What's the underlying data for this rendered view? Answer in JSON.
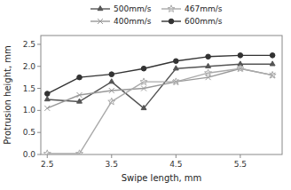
{
  "chart_data": {
    "type": "line",
    "x": [
      2.5,
      3.0,
      3.5,
      4.0,
      4.5,
      5.0,
      5.5,
      6.0
    ],
    "series": [
      {
        "name": "500mm/s",
        "color": "#555555",
        "marker": "triangle",
        "values": [
          1.25,
          1.2,
          1.65,
          1.05,
          1.95,
          2.0,
          2.05,
          2.05
        ]
      },
      {
        "name": "400mm/s",
        "color": "#999999",
        "marker": "x",
        "values": [
          1.05,
          1.35,
          1.45,
          1.5,
          1.65,
          1.75,
          1.95,
          1.8
        ]
      },
      {
        "name": "467mm/s",
        "color": "#aaaaaa",
        "marker": "star",
        "values": [
          0.02,
          0.02,
          1.2,
          1.65,
          1.65,
          1.85,
          1.95,
          1.8
        ]
      },
      {
        "name": "600mm/s",
        "color": "#333333",
        "marker": "circle",
        "values": [
          1.38,
          1.75,
          1.82,
          1.95,
          2.12,
          2.22,
          2.25,
          2.25
        ]
      }
    ],
    "xlabel": "Swipe length, mm",
    "ylabel": "Protrusion height, mm",
    "xlim": [
      2.4,
      6.15
    ],
    "ylim": [
      0,
      2.7
    ],
    "xticks": [
      2.5,
      3.5,
      4.5,
      5.5
    ],
    "yticks": [
      {
        "value": 0,
        "label": "0.0"
      },
      0.5,
      {
        "value": 1,
        "label": "1.0"
      },
      1.5,
      {
        "value": 2,
        "label": "2.0"
      },
      2.5
    ],
    "grid": false,
    "legend": "top"
  }
}
